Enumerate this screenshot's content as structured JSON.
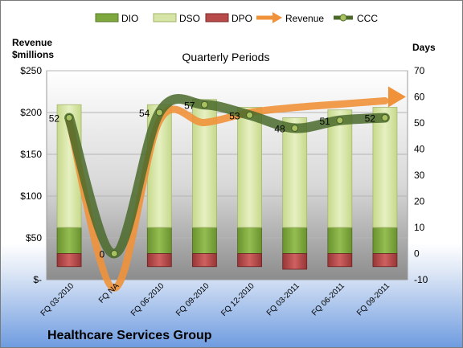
{
  "chart_data": {
    "type": "bar",
    "title": "",
    "subtitle": "Quarterly Periods",
    "footer": "Healthcare Services Group",
    "left_axis_title_line1": "Revenue",
    "left_axis_title_line2": "$millions",
    "right_axis_title": "Days",
    "left_ticks": [
      "$-",
      "$50",
      "$100",
      "$150",
      "$200",
      "$250"
    ],
    "right_ticks": [
      "-10",
      "0",
      "10",
      "20",
      "30",
      "40",
      "50",
      "60",
      "70"
    ],
    "ylim_left": [
      0,
      250
    ],
    "ylim_right": [
      -10,
      70
    ],
    "legend_position": "top",
    "categories": [
      "FQ 03-2010",
      "FQ NA",
      "FQ 06-2010",
      "FQ 09-2010",
      "FQ 12-2010",
      "FQ 03-2011",
      "FQ 06-2011",
      "FQ 09-2011"
    ],
    "series": [
      {
        "name": "DIO",
        "axis": "right",
        "kind": "stacked-bar",
        "color": "#7ea83e",
        "values": [
          10,
          0,
          10,
          10,
          10,
          10,
          10,
          10
        ]
      },
      {
        "name": "DSO",
        "axis": "right",
        "kind": "stacked-bar",
        "color": "#d7e6a6",
        "values": [
          47,
          0,
          47,
          49,
          46,
          42,
          45,
          46
        ]
      },
      {
        "name": "DPO",
        "axis": "right",
        "kind": "negative-bar",
        "color": "#b84a4a",
        "values": [
          -5,
          0,
          -5,
          -5,
          -5,
          -6,
          -5,
          -5
        ]
      },
      {
        "name": "Revenue",
        "axis": "left",
        "kind": "line",
        "color": "#f0923a",
        "values": [
          190,
          -10,
          190,
          188,
          200,
          206,
          210,
          214
        ]
      },
      {
        "name": "CCC",
        "axis": "right",
        "kind": "line",
        "color": "#4a6a2a",
        "values": [
          52,
          0,
          54,
          57,
          53,
          48,
          51,
          52
        ]
      }
    ],
    "data_labels": [
      "52",
      "0",
      "54",
      "57",
      "53",
      "48",
      "51",
      "52"
    ],
    "grid": true
  }
}
